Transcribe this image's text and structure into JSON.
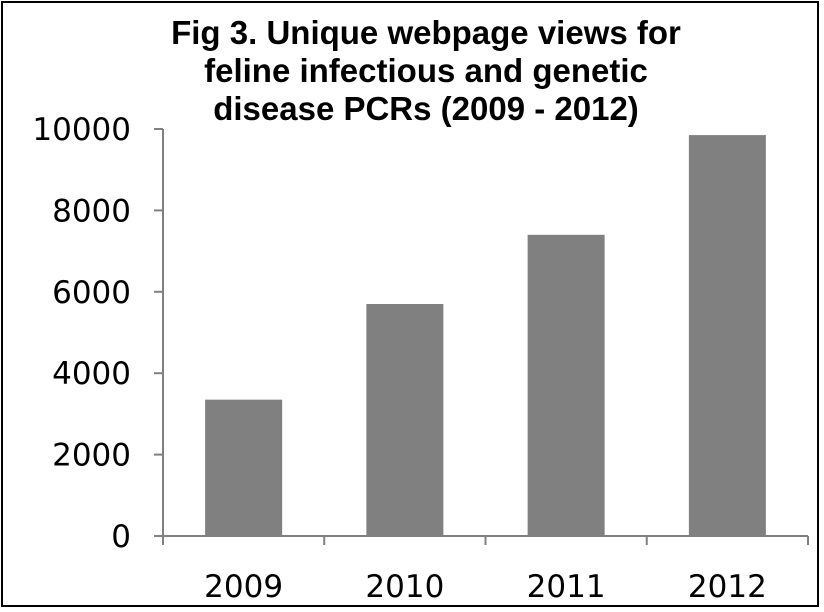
{
  "chart_data": {
    "type": "bar",
    "title_lines": [
      "Fig 3. Unique webpage views  for",
      "feline infectious and  genetic",
      "disease PCRs (2009 - 2012)"
    ],
    "categories": [
      "2009",
      "2010",
      "2011",
      "2012"
    ],
    "values": [
      3350,
      5700,
      7400,
      9850
    ],
    "ylim": [
      0,
      10000
    ],
    "yticks": [
      0,
      2000,
      4000,
      6000,
      8000,
      10000
    ],
    "xlabel": "",
    "ylabel": "",
    "grid": false,
    "legend": "none",
    "bar_color": "#808080"
  }
}
